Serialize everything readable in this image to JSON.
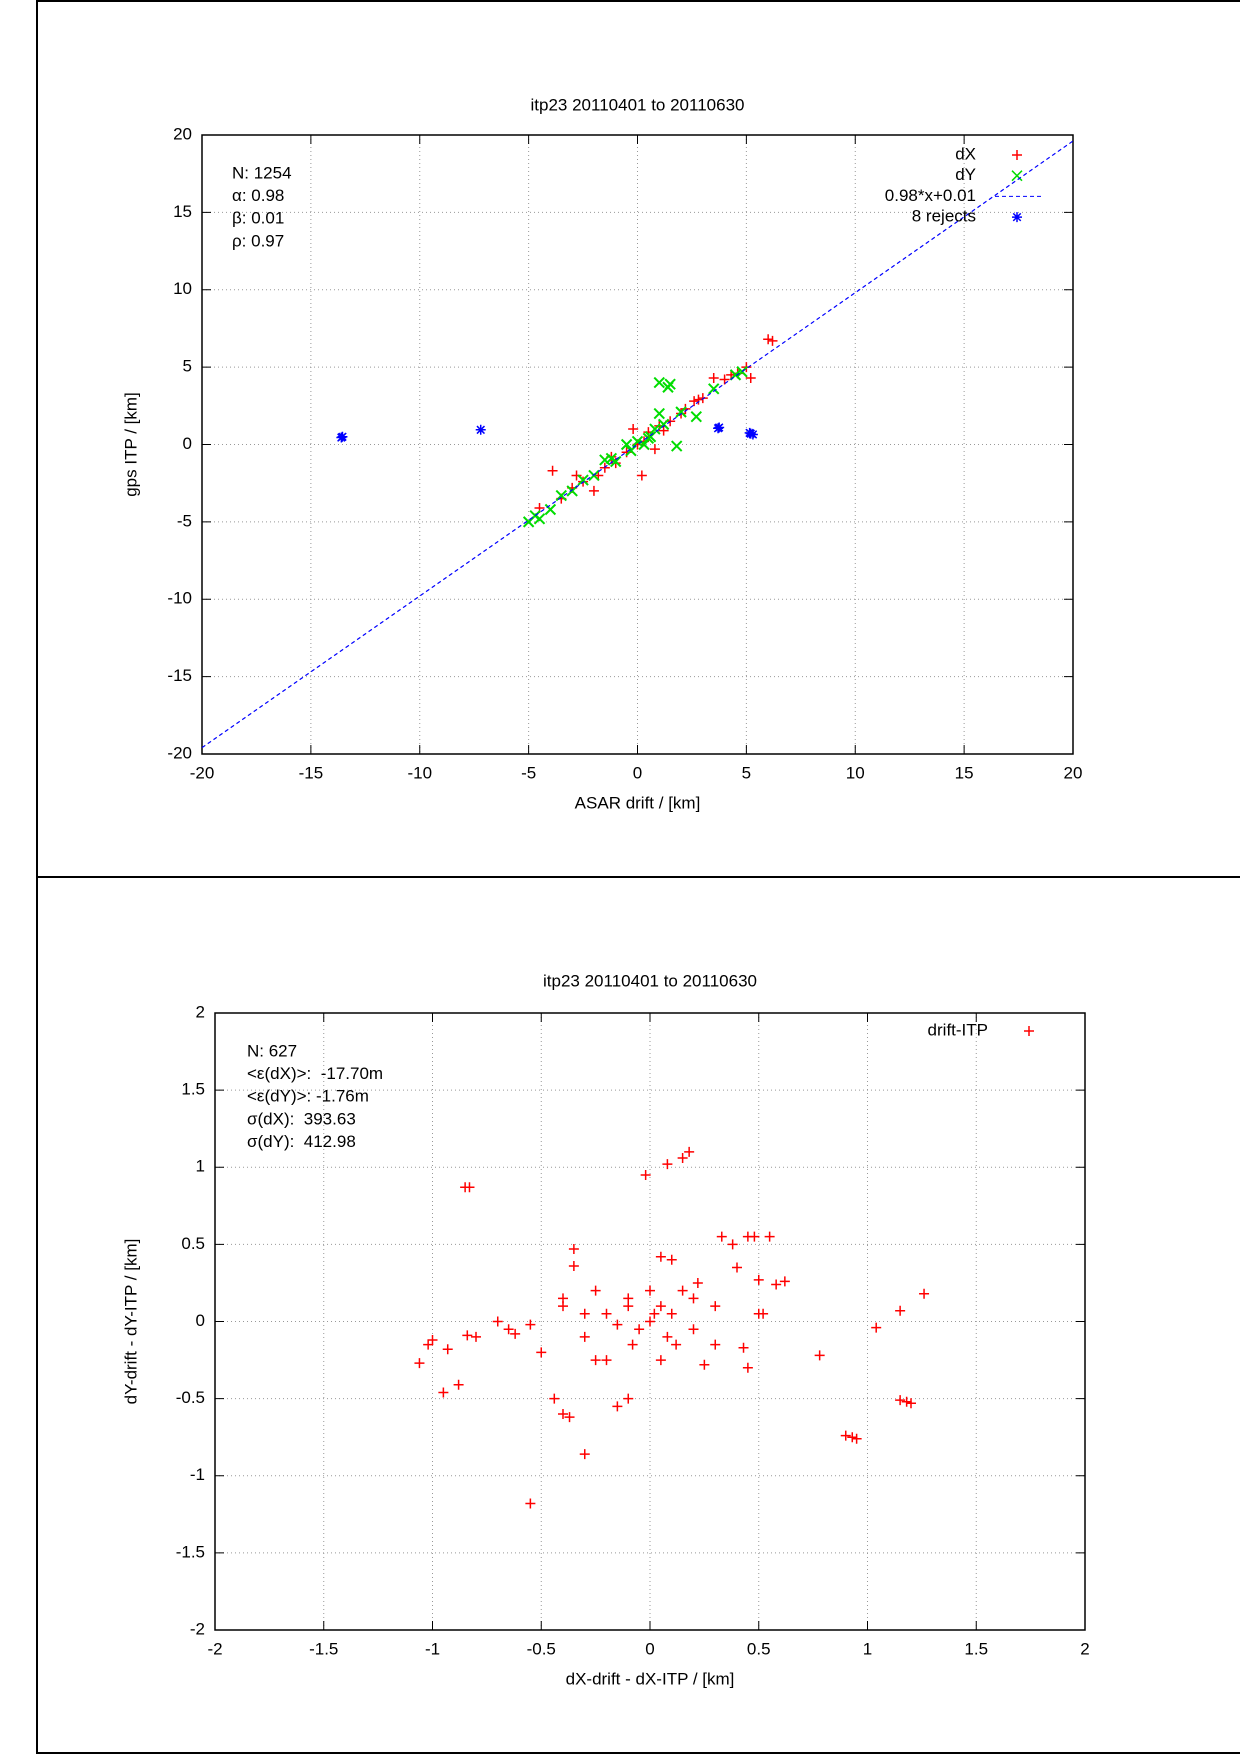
{
  "chart_data": [
    {
      "type": "scatter",
      "title": "itp23 20110401 to 20110630",
      "x_label": "ASAR drift / [km]",
      "y_label": "gps ITP / [km]",
      "annotations": [
        "N: 1254",
        "α: 0.98",
        "β: 0.01",
        "ρ: 0.97"
      ],
      "xlim": [
        -20,
        20
      ],
      "ylim": [
        -20,
        20
      ],
      "xticks": [
        -20,
        -15,
        -10,
        -5,
        0,
        5,
        10,
        15,
        20
      ],
      "yticks": [
        -20,
        -15,
        -10,
        -5,
        0,
        5,
        10,
        15,
        20
      ],
      "grid": true,
      "legend": "top right",
      "series": [
        {
          "name": "dX",
          "color": "#ff0000",
          "marker": "+",
          "x": [
            -4.5,
            -3.9,
            -3.5,
            -3.0,
            -2.5,
            -2.0,
            -1.5,
            -1.0,
            -0.5,
            0,
            0.5,
            0.2,
            1.0,
            1.5,
            2.0,
            2.6,
            3.0,
            3.5,
            4.0,
            4.3,
            5.0,
            5.2,
            6.0,
            6.2,
            -0.2,
            0.8,
            -1.8,
            2.2,
            -2.8,
            1.2,
            -1.2,
            0.3,
            4.6,
            2.8
          ],
          "values": [
            -4.1,
            -1.7,
            -3.5,
            -2.8,
            -2.4,
            -3.0,
            -1.5,
            -1.2,
            -0.5,
            0,
            0.8,
            -2.0,
            1.2,
            1.5,
            2.0,
            2.8,
            3.0,
            4.3,
            4.2,
            4.5,
            5.0,
            4.3,
            6.8,
            6.7,
            1.0,
            -0.3,
            -2.0,
            2.3,
            -2.0,
            0.9,
            -0.8,
            0.2,
            4.6,
            2.9
          ]
        },
        {
          "name": "dY",
          "color": "#00dd00",
          "marker": "x",
          "x": [
            -5.0,
            -4.7,
            -4.5,
            -4.0,
            -3.5,
            -3.0,
            -2.0,
            -1.5,
            -1.0,
            -0.5,
            0,
            0.5,
            1.0,
            1.5,
            1.4,
            1.0,
            1.8,
            2.7,
            3.5,
            4.5,
            4.8,
            0.3,
            -0.3,
            0.8,
            1.2,
            2.0,
            -2.5,
            -1.2,
            0.6
          ],
          "values": [
            -5.0,
            -4.6,
            -4.8,
            -4.2,
            -3.3,
            -3.0,
            -2.0,
            -1.0,
            -1.1,
            0,
            0.2,
            0.4,
            4.0,
            3.9,
            3.7,
            2.0,
            -0.1,
            1.8,
            3.6,
            4.5,
            4.7,
            0,
            -0.4,
            1.0,
            1.3,
            2.1,
            -2.3,
            -0.9,
            0.5
          ]
        },
        {
          "name": "0.98*x+0.01",
          "color": "#0000ff",
          "type": "line",
          "style": "dashed",
          "x": [
            -20,
            20
          ],
          "values": [
            -19.59,
            19.61
          ]
        },
        {
          "name": "8 rejects",
          "color": "#0000ff",
          "marker": "*",
          "x": [
            -13.6,
            -13.55,
            -7.2,
            3.7,
            3.75,
            5.2,
            5.3,
            5.15
          ],
          "values": [
            0.45,
            0.5,
            0.95,
            1.05,
            1.1,
            0.7,
            0.65,
            0.75
          ]
        }
      ]
    },
    {
      "type": "scatter",
      "title": "itp23 20110401 to 20110630",
      "x_label": "dX-drift - dX-ITP / [km]",
      "y_label": "dY-drift - dY-ITP / [km]",
      "annotations": [
        "N: 627",
        "<ε(dX)>:  -17.70m",
        "<ε(dY)>: -1.76m",
        "σ(dX):  393.63",
        "σ(dY):  412.98"
      ],
      "xlim": [
        -2,
        2
      ],
      "ylim": [
        -2,
        2
      ],
      "xticks": [
        -2,
        -1.5,
        -1,
        -0.5,
        0,
        0.5,
        1,
        1.5,
        2
      ],
      "yticks": [
        -2,
        -1.5,
        -1,
        -0.5,
        0,
        0.5,
        1,
        1.5,
        2
      ],
      "grid": true,
      "legend": "top right",
      "series": [
        {
          "name": "drift-ITP",
          "color": "#ff0000",
          "marker": "+",
          "x": [
            -1.06,
            -1.02,
            -1.0,
            -0.95,
            -0.93,
            -0.88,
            -0.85,
            -0.83,
            -0.84,
            -0.8,
            -0.7,
            -0.65,
            -0.62,
            -0.55,
            -0.55,
            -0.5,
            -0.44,
            -0.4,
            -0.37,
            -0.35,
            -0.35,
            -0.3,
            -0.4,
            -0.4,
            -0.3,
            -0.25,
            -0.2,
            -0.15,
            -0.1,
            -0.1,
            -0.05,
            0,
            0.02,
            0.05,
            0.08,
            -0.02,
            0.08,
            0.15,
            0.18,
            0.1,
            0.05,
            0.15,
            0.2,
            0.25,
            0.3,
            0.33,
            0.38,
            0.45,
            0.48,
            0.55,
            0.4,
            0.45,
            0.43,
            0.5,
            0.52,
            0.58,
            0.62,
            0.5,
            0.78,
            0.9,
            0.93,
            0.95,
            1.04,
            1.15,
            1.15,
            1.18,
            1.2,
            1.26,
            -0.2,
            -0.15,
            -0.1,
            0.1,
            0.12,
            0.2,
            -0.08,
            0,
            0.05,
            -0.3,
            0.3,
            -0.25,
            0.22
          ],
          "values": [
            -0.27,
            -0.15,
            -0.12,
            -0.46,
            -0.18,
            -0.41,
            0.87,
            0.87,
            -0.09,
            -0.1,
            0,
            -0.05,
            -0.08,
            -0.02,
            -1.18,
            -0.2,
            -0.5,
            -0.6,
            -0.62,
            0.47,
            0.36,
            -0.86,
            0.15,
            0.1,
            -0.1,
            0.2,
            -0.25,
            -0.55,
            -0.5,
            0.1,
            -0.05,
            0,
            0.05,
            0.1,
            -0.1,
            0.95,
            1.02,
            1.06,
            1.1,
            0.4,
            0.42,
            0.2,
            -0.05,
            -0.28,
            0.1,
            0.55,
            0.5,
            0.55,
            0.55,
            0.55,
            0.35,
            -0.3,
            -0.17,
            0.05,
            0.05,
            0.24,
            0.26,
            0.27,
            -0.22,
            -0.74,
            -0.75,
            -0.76,
            -0.04,
            0.07,
            -0.51,
            -0.52,
            -0.53,
            0.18,
            0.05,
            -0.02,
            0.15,
            0.05,
            -0.15,
            0.15,
            -0.15,
            0.2,
            -0.25,
            0.05,
            -0.15,
            -0.25,
            0.25
          ]
        }
      ]
    }
  ]
}
